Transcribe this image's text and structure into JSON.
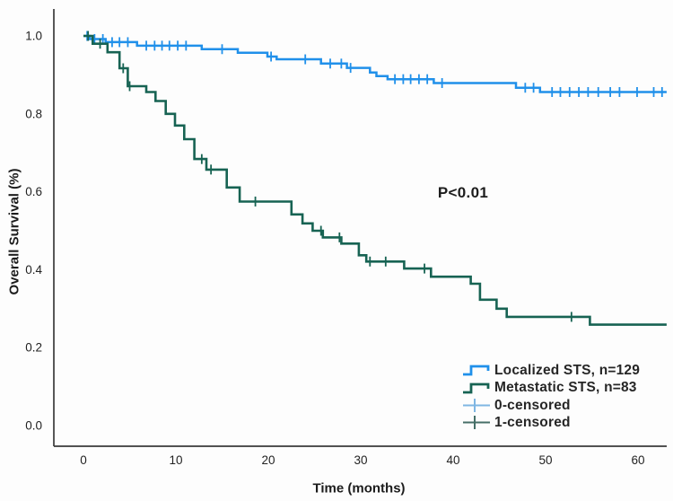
{
  "chart_data": {
    "type": "line",
    "subtype": "kaplan_meier_step",
    "title": "",
    "xlabel": "Time (months)",
    "ylabel": "Overall Survival (%)",
    "annotation": "P<0.01",
    "grid": false,
    "legend_position": "lower-right-inside",
    "xlim": [
      -3.2,
      63.2
    ],
    "ylim": [
      -0.05,
      1.06
    ],
    "x_ticks": {
      "labels": [
        "0",
        "10",
        "20",
        "30",
        "40",
        "50",
        "60"
      ],
      "values": [
        0,
        10,
        20,
        30,
        40,
        50,
        60
      ]
    },
    "y_ticks": {
      "labels": [
        "0.0",
        "0.2",
        "0.4",
        "0.6",
        "0.8",
        "1.0"
      ],
      "values": [
        0,
        0.2,
        0.4,
        0.6,
        0.8,
        1.0
      ]
    },
    "axis_color": "#3a3a3a",
    "series": [
      {
        "key": "localized",
        "name": "Localized STS, n=129",
        "n": 129,
        "color": "#2090ea",
        "line_width": 2.5,
        "end_time": 63.1,
        "steps": [
          [
            0,
            1.0
          ],
          [
            0.7,
            0.992
          ],
          [
            2.4,
            0.984
          ],
          [
            5.8,
            0.975
          ],
          [
            12.8,
            0.966
          ],
          [
            16.7,
            0.957
          ],
          [
            19.9,
            0.947
          ],
          [
            20.9,
            0.94
          ],
          [
            25.7,
            0.929
          ],
          [
            28.5,
            0.918
          ],
          [
            31.0,
            0.906
          ],
          [
            31.7,
            0.897
          ],
          [
            32.9,
            0.889
          ],
          [
            37.9,
            0.879
          ],
          [
            46.8,
            0.867
          ],
          [
            49.4,
            0.856
          ]
        ],
        "censors": [
          0.4,
          1.2,
          2.1,
          3.1,
          3.9,
          4.8,
          6.8,
          7.7,
          8.5,
          9.3,
          10.2,
          11.1,
          15.0,
          20.3,
          24.0,
          26.7,
          27.9,
          28.9,
          33.7,
          34.6,
          35.4,
          36.3,
          37.2,
          38.8,
          47.8,
          48.7,
          50.7,
          51.6,
          52.6,
          53.6,
          54.6,
          55.7,
          57.0,
          58.0,
          59.9,
          61.7,
          62.6
        ]
      },
      {
        "key": "metastatic",
        "name": "Metastatic STS, n=83",
        "n": 83,
        "color": "#17635322",
        "line_width": 2.6,
        "end_time": 63.1,
        "steps": [
          [
            0,
            1.0
          ],
          [
            1.0,
            0.98
          ],
          [
            2.6,
            0.958
          ],
          [
            3.9,
            0.917
          ],
          [
            4.8,
            0.871
          ],
          [
            6.8,
            0.856
          ],
          [
            7.8,
            0.833
          ],
          [
            8.9,
            0.8
          ],
          [
            9.9,
            0.77
          ],
          [
            10.9,
            0.735
          ],
          [
            12.0,
            0.684
          ],
          [
            13.3,
            0.657
          ],
          [
            15.5,
            0.611
          ],
          [
            16.9,
            0.575
          ],
          [
            22.5,
            0.542
          ],
          [
            23.7,
            0.519
          ],
          [
            24.8,
            0.5
          ],
          [
            25.9,
            0.483
          ],
          [
            27.9,
            0.467
          ],
          [
            29.8,
            0.437
          ],
          [
            30.6,
            0.421
          ],
          [
            34.7,
            0.403
          ],
          [
            37.6,
            0.382
          ],
          [
            41.9,
            0.364
          ],
          [
            42.9,
            0.323
          ],
          [
            44.7,
            0.3
          ],
          [
            45.8,
            0.279
          ],
          [
            54.8,
            0.259
          ]
        ],
        "censors": [
          0.5,
          1.8,
          4.3,
          5.0,
          12.8,
          13.8,
          18.6,
          25.7,
          27.7,
          31.0,
          32.7,
          36.9,
          52.8
        ]
      }
    ],
    "legend": [
      {
        "label": "Localized STS, n=129",
        "symbol": "step-line",
        "color": "#2090ea"
      },
      {
        "label": "Metastatic STS, n=83",
        "symbol": "step-line",
        "color": "#176353"
      },
      {
        "label": "0-censored",
        "symbol": "plus",
        "color": "#7fb6e3"
      },
      {
        "label": "1-censored",
        "symbol": "plus",
        "color": "#466f68"
      }
    ]
  }
}
